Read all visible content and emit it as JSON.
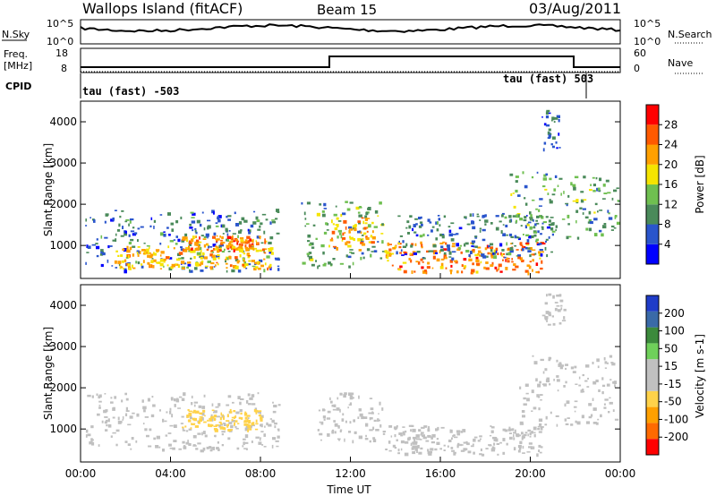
{
  "header": {
    "station": "Wallops Island (fitACF)",
    "beam": "Beam 15",
    "date": "03/Aug/2011"
  },
  "meta_panels": {
    "nsky_label": "N.Sky",
    "nsky_ticks": [
      "10^5",
      "10^0"
    ],
    "nsearch_label": "N.Search",
    "nsearch_ticks": [
      "10^5",
      "10^0"
    ],
    "freq_label_1": "Freq.",
    "freq_label_2": "[MHz]",
    "freq_ticks": [
      "18",
      "8"
    ],
    "nave_label": "Nave",
    "nave_ticks": [
      "60",
      "0"
    ],
    "cpid_label": "CPID",
    "cpid_left": "tau (fast) -503",
    "cpid_right": "tau (fast) 503"
  },
  "colors": {
    "power_scale": [
      "#0000ff",
      "#2a55cc",
      "#4a8a5a",
      "#6fbf50",
      "#f5e400",
      "#ffa000",
      "#ff5a00",
      "#ff0000"
    ],
    "velocity_scale": [
      "#ff0000",
      "#ff6a00",
      "#ffa000",
      "#ffd24a",
      "#c0c0c0",
      "#c0c0c0",
      "#6fd05a",
      "#3c8a3c",
      "#3a6aa8",
      "#1f3cc8"
    ],
    "ground_scatter": "#c0c0c0"
  },
  "chart_data": [
    {
      "type": "heatmap",
      "panel": "power",
      "ylabel": "Slant Range [km]",
      "yticks": [
        "1000",
        "2000",
        "3000",
        "4000"
      ],
      "ylim": [
        200,
        4500
      ],
      "xlim": [
        0,
        24
      ],
      "colorbar_label": "Power [dB]",
      "colorbar_ticks": [
        "28",
        "24",
        "20",
        "16",
        "12",
        "8",
        "4"
      ],
      "colorbar_range": [
        0,
        32
      ],
      "bands": [
        {
          "t0": 0.2,
          "t1": 8.8,
          "r0": 400,
          "r1": 1900,
          "level": 8
        },
        {
          "t0": 1.5,
          "t1": 8.5,
          "r0": 450,
          "r1": 1000,
          "level": 20
        },
        {
          "t0": 4.5,
          "t1": 8.2,
          "r0": 900,
          "r1": 1250,
          "level": 24
        },
        {
          "t0": 9.8,
          "t1": 13.5,
          "r0": 500,
          "r1": 2100,
          "level": 12
        },
        {
          "t0": 11.0,
          "t1": 13.0,
          "r0": 900,
          "r1": 1700,
          "level": 22
        },
        {
          "t0": 13.5,
          "t1": 20.5,
          "r0": 350,
          "r1": 1100,
          "level": 24
        },
        {
          "t0": 14.0,
          "t1": 21.0,
          "r0": 700,
          "r1": 1800,
          "level": 8
        },
        {
          "t0": 19.0,
          "t1": 23.9,
          "r0": 1200,
          "r1": 2800,
          "level": 12
        },
        {
          "t0": 20.5,
          "t1": 21.5,
          "r0": 3300,
          "r1": 4300,
          "level": 6
        }
      ]
    },
    {
      "type": "heatmap",
      "panel": "velocity",
      "ylabel": "Slant Range [km]",
      "yticks": [
        "1000",
        "2000",
        "3000",
        "4000"
      ],
      "ylim": [
        200,
        4500
      ],
      "xlim": [
        0,
        24
      ],
      "xlabel": "Time UT",
      "xticks": [
        "00:00",
        "04:00",
        "08:00",
        "12:00",
        "16:00",
        "20:00",
        "00:00"
      ],
      "xtick_hours": [
        0,
        4,
        8,
        12,
        16,
        20,
        24
      ],
      "colorbar_label": "Velocity [m s-1]",
      "colorbar_ticks": [
        "200",
        "100",
        "50",
        "15",
        "-15",
        "-50",
        "-100",
        "-200"
      ],
      "colorbar_range": [
        -250,
        250
      ],
      "bands": [
        {
          "t0": 0.2,
          "t1": 8.8,
          "r0": 500,
          "r1": 1900,
          "level": 30
        },
        {
          "t0": 4.5,
          "t1": 8.0,
          "r0": 1000,
          "r1": 1500,
          "level": -60
        },
        {
          "t0": 10.5,
          "t1": 13.5,
          "r0": 700,
          "r1": 1900,
          "level": 0
        },
        {
          "t0": 13.5,
          "t1": 20.5,
          "r0": 400,
          "r1": 1100,
          "level": 0
        },
        {
          "t0": 19.5,
          "t1": 23.8,
          "r0": 1100,
          "r1": 2800,
          "level": 0
        },
        {
          "t0": 20.5,
          "t1": 21.5,
          "r0": 3500,
          "r1": 4300,
          "level": 0
        }
      ]
    }
  ]
}
